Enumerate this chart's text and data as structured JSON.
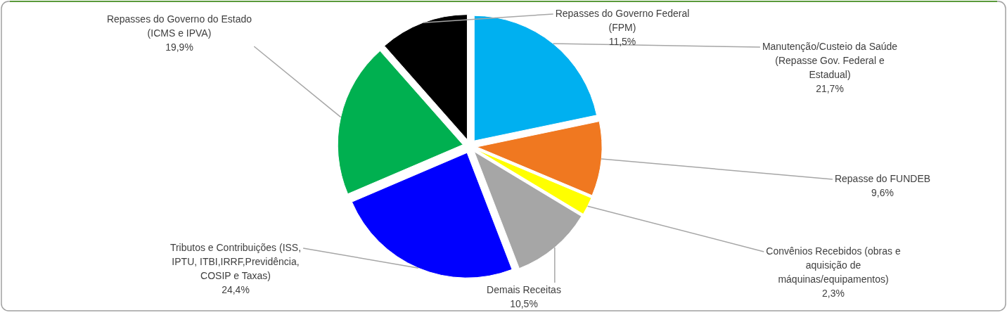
{
  "chart_data": {
    "type": "pie",
    "categories": [
      "Manutenção/Custeio da Saúde (Repasse Gov. Federal e Estadual)",
      "Repasse do FUNDEB",
      "Convênios Recebidos (obras e aquisição de máquinas/equipamentos)",
      "Demais Receitas",
      "Tributos e Contribuições (ISS, IPTU, ITBI,IRRF,Previdência, COSIP e Taxas)",
      "Repasses do Governo do Estado (ICMS e IPVA)",
      "Repasses do Governo Federal (FPM)"
    ],
    "values": [
      21.7,
      9.6,
      2.3,
      10.5,
      24.4,
      19.9,
      11.5
    ],
    "colors": [
      "#00b0f0",
      "#f07820",
      "#ffff00",
      "#a6a6a6",
      "#0000ff",
      "#00b050",
      "#000000"
    ],
    "value_labels": [
      "21,7%",
      "9,6%",
      "2,3%",
      "10,5%",
      "24,4%",
      "19,9%",
      "11,5%"
    ],
    "legend": false
  }
}
